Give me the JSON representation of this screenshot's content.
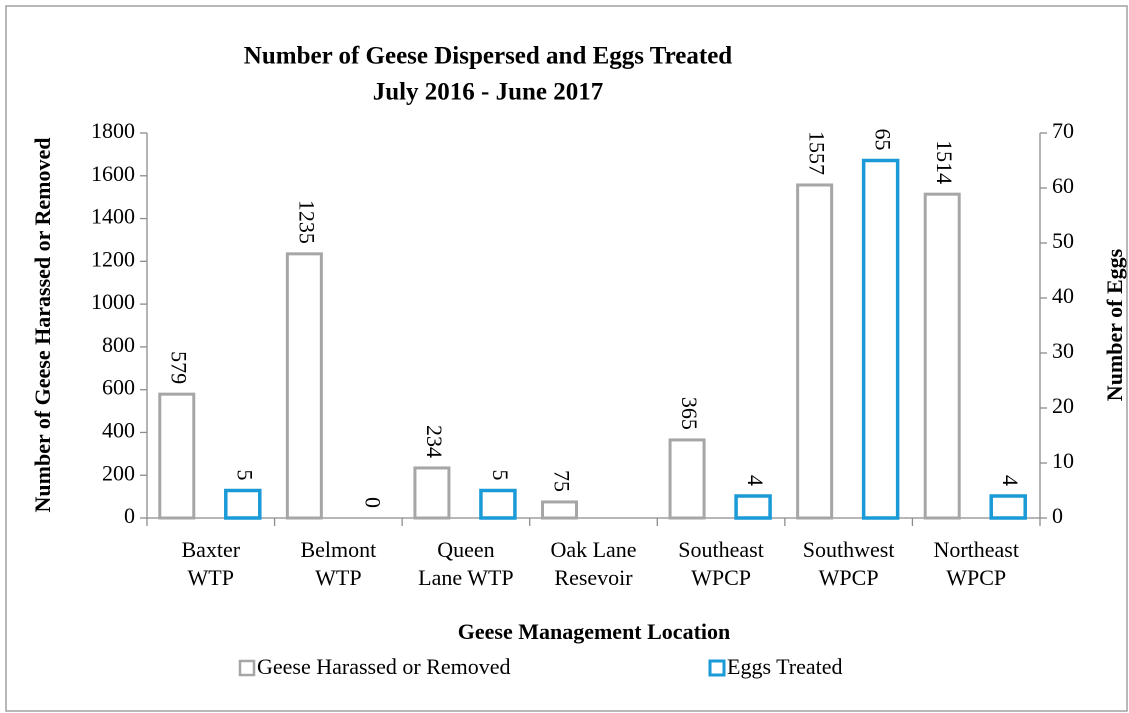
{
  "chart_data": {
    "type": "bar",
    "title": [
      "Number of Geese Dispersed and Eggs Treated",
      "July 2016 - June 2017"
    ],
    "x_label": "Geese Management Location",
    "y_label": "Number of Geese Harassed or Removed",
    "y2_label": "Number of Eggs",
    "categories": [
      "Baxter\nWTP",
      "Belmont\nWTP",
      "Queen\nLane WTP",
      "Oak Lane\nResevoir",
      "Southeast\nWPCP",
      "Southwest\nWPCP",
      "Northeast\nWPCP"
    ],
    "series": [
      {
        "name": "Geese Harassed or Removed",
        "color": "#a6a6a6",
        "axis": "y",
        "values": [
          579,
          1235,
          234,
          75,
          365,
          1557,
          1514
        ]
      },
      {
        "name": "Eggs Treated",
        "color": "#1a9ad6",
        "axis": "y2",
        "values": [
          5,
          0,
          5,
          null,
          4,
          65,
          4
        ]
      }
    ],
    "ylim": [
      0,
      1800
    ],
    "yticks": [
      0,
      200,
      400,
      600,
      800,
      1000,
      1200,
      1400,
      1600,
      1800
    ],
    "y2lim": [
      0,
      70
    ],
    "y2ticks": [
      0,
      10,
      20,
      30,
      40,
      50,
      60,
      70
    ],
    "legend": "bottom"
  }
}
